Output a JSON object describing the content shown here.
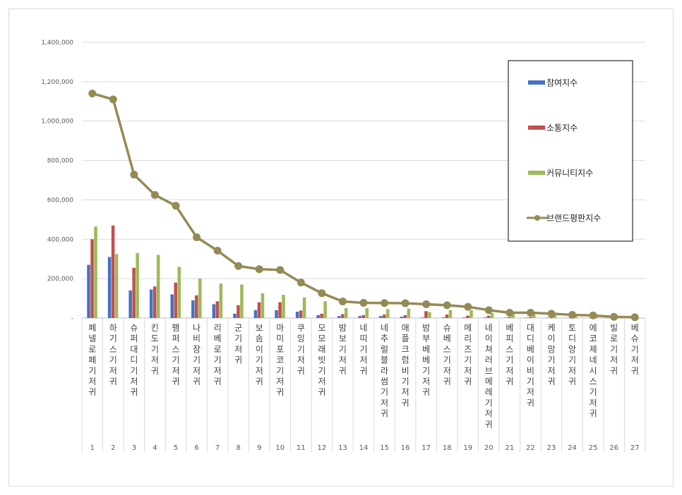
{
  "chart_data": {
    "type": "bar",
    "combo": "bar+line",
    "title": "",
    "xlabel": "",
    "ylabel": "",
    "ylim": [
      0,
      1400000
    ],
    "yticks": [
      0,
      200000,
      400000,
      600000,
      800000,
      1000000,
      1200000,
      1400000
    ],
    "ytick_labels": [
      "-",
      "200,000",
      "400,000",
      "600,000",
      "800,000",
      "1,000,000",
      "1,200,000",
      "1,400,000"
    ],
    "grid": true,
    "legend_position": "right",
    "categories": [
      "페넬로페기저귀",
      "하기스기저귀",
      "슈퍼대디기저귀",
      "킨도기저귀",
      "팸퍼스기저귀",
      "나비잠기저귀",
      "리베로기저귀",
      "군기저귀",
      "보솜이기저귀",
      "마미포코기저귀",
      "쿠잉기저귀",
      "모모래빗기저귀",
      "밤보기저귀",
      "네띠기저귀",
      "네추럴블라썸기저귀",
      "애플크럼비기저귀",
      "밤부베베기저귀",
      "슈베스기저귀",
      "메리즈기저귀",
      "네이쳐러브메레기저귀",
      "베피스기저귀",
      "대디베이비기저귀",
      "케이맘기저귀",
      "토디앙기저귀",
      "에코제네시스기저귀",
      "빌로기저귀",
      "베슈기저귀"
    ],
    "ranks": [
      "1",
      "2",
      "3",
      "4",
      "5",
      "6",
      "7",
      "8",
      "9",
      "10",
      "11",
      "12",
      "13",
      "14",
      "15",
      "16",
      "17",
      "18",
      "19",
      "20",
      "21",
      "22",
      "23",
      "24",
      "25",
      "26",
      "27"
    ],
    "series": [
      {
        "name": "참여지수",
        "type": "bar",
        "color": "#4472c4",
        "values": [
          270000,
          310000,
          140000,
          145000,
          120000,
          90000,
          70000,
          22000,
          40000,
          40000,
          32000,
          15000,
          10000,
          10000,
          10000,
          7000,
          3000,
          3000,
          3000,
          3000,
          2000,
          2000,
          2000,
          1500,
          1000,
          1000,
          1000
        ]
      },
      {
        "name": "소통지수",
        "type": "bar",
        "color": "#c0504d",
        "values": [
          400000,
          470000,
          255000,
          160000,
          180000,
          115000,
          85000,
          65000,
          80000,
          80000,
          38000,
          22000,
          20000,
          15000,
          18000,
          15000,
          35000,
          18000,
          12000,
          12000,
          5000,
          5000,
          4000,
          3000,
          3000,
          2000,
          1000
        ]
      },
      {
        "name": "커뮤니티지수",
        "type": "bar",
        "color": "#9bbb59",
        "values": [
          465000,
          325000,
          330000,
          320000,
          260000,
          200000,
          175000,
          170000,
          125000,
          118000,
          105000,
          85000,
          50000,
          50000,
          45000,
          48000,
          30000,
          40000,
          40000,
          25000,
          20000,
          20000,
          17000,
          12000,
          10000,
          5000,
          2000
        ]
      },
      {
        "name": "브랜드평판지수",
        "type": "line",
        "color": "#948a54",
        "values": [
          1140000,
          1110000,
          728000,
          625000,
          570000,
          410000,
          342000,
          264000,
          248000,
          244000,
          180000,
          126000,
          84000,
          77000,
          76000,
          75000,
          70000,
          65000,
          57000,
          40000,
          27000,
          27000,
          22000,
          16000,
          13000,
          6000,
          4000
        ]
      }
    ]
  }
}
